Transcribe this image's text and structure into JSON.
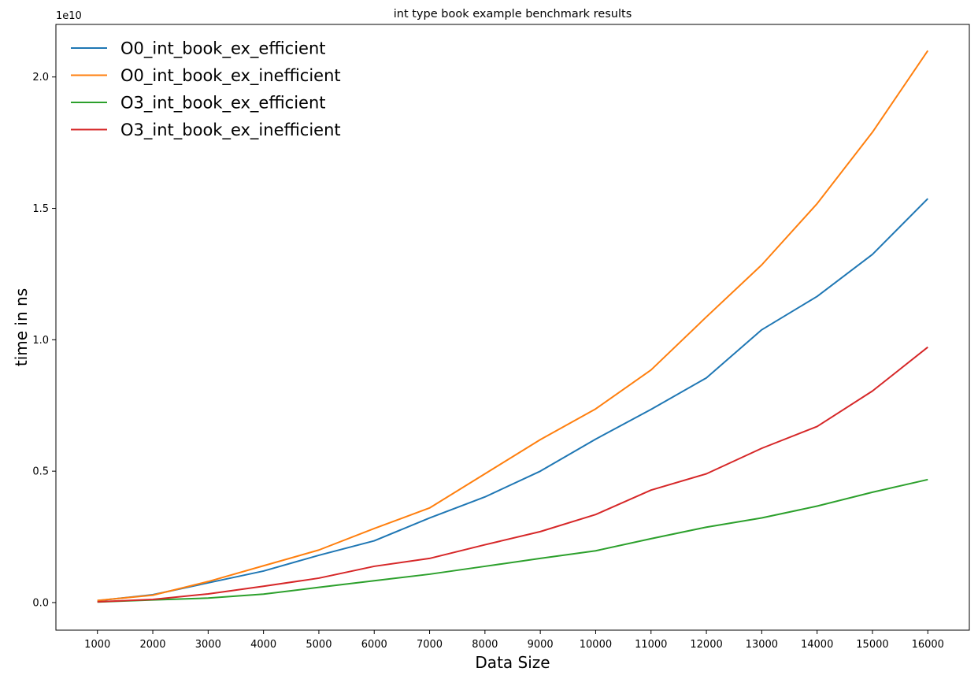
{
  "chart_data": {
    "type": "line",
    "title": "int type book example benchmark results",
    "xlabel": "Data Size",
    "ylabel": "time in ns",
    "y_offset_label": "1e10",
    "x": [
      1000,
      2000,
      3000,
      4000,
      5000,
      6000,
      7000,
      8000,
      9000,
      10000,
      11000,
      12000,
      13000,
      14000,
      15000,
      16000
    ],
    "x_tick_labels": [
      "1000",
      "2000",
      "3000",
      "4000",
      "5000",
      "6000",
      "7000",
      "8000",
      "9000",
      "10000",
      "11000",
      "12000",
      "13000",
      "14000",
      "15000",
      "16000"
    ],
    "y_ticks": [
      0,
      0.5,
      1.0,
      1.5,
      2.0
    ],
    "y_tick_labels": [
      "0.0",
      "0.5",
      "1.0",
      "1.5",
      "2.0"
    ],
    "xlim": [
      250,
      16750
    ],
    "ylim": [
      -0.105,
      2.2
    ],
    "grid": false,
    "legend_position": "top-left",
    "series": [
      {
        "name": "O0_int_book_ex_efficient",
        "color": "#1f77b4",
        "values": [
          0.007,
          0.03,
          0.075,
          0.12,
          0.18,
          0.235,
          0.322,
          0.402,
          0.5,
          0.622,
          0.735,
          0.855,
          1.038,
          1.165,
          1.325,
          1.537
        ]
      },
      {
        "name": "O0_int_book_ex_inefficient",
        "color": "#ff7f0e",
        "values": [
          0.008,
          0.028,
          0.08,
          0.14,
          0.2,
          0.282,
          0.36,
          0.49,
          0.62,
          0.737,
          0.885,
          1.087,
          1.285,
          1.518,
          1.79,
          2.1
        ]
      },
      {
        "name": "O3_int_book_ex_efficient",
        "color": "#2ca02c",
        "values": [
          0.002,
          0.01,
          0.017,
          0.032,
          0.058,
          0.083,
          0.108,
          0.138,
          0.168,
          0.197,
          0.243,
          0.287,
          0.322,
          0.367,
          0.42,
          0.468
        ]
      },
      {
        "name": "O3_int_book_ex_inefficient",
        "color": "#d62728",
        "values": [
          0.003,
          0.012,
          0.033,
          0.062,
          0.093,
          0.138,
          0.168,
          0.22,
          0.27,
          0.335,
          0.428,
          0.49,
          0.587,
          0.67,
          0.805,
          0.972
        ]
      }
    ]
  }
}
